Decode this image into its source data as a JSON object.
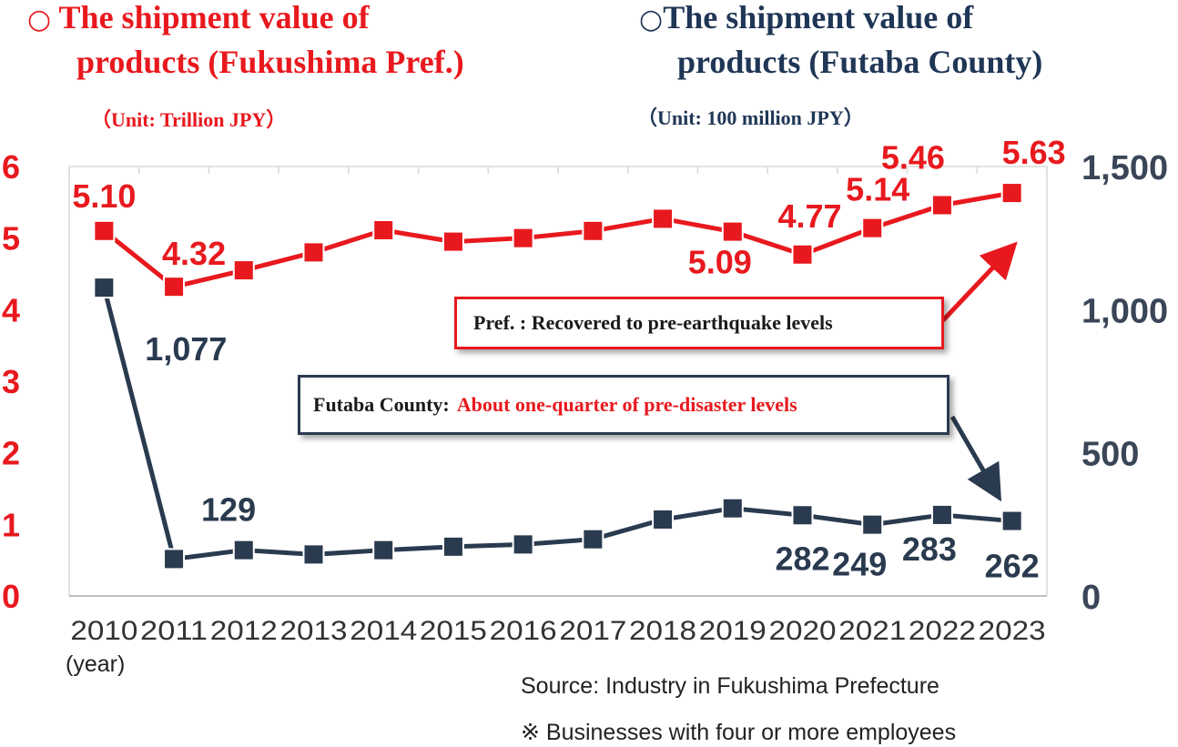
{
  "header": {
    "left_marker": "○",
    "left_title_line1": "The shipment value of",
    "left_title_line2": "products  (Fukushima Pref.)",
    "left_unit": "（Unit: Trillion JPY）",
    "right_marker": "○",
    "right_title_line1": "The shipment value of",
    "right_title_line2": "products (Futaba County)",
    "right_unit": "（Unit: 100 million JPY）"
  },
  "colors": {
    "pref": "#e8191e",
    "futaba": "#2a3a4f",
    "axis_right": "#3a4658",
    "grid": "#d9d9d9"
  },
  "callouts": {
    "pref": "Pref. : Recovered to pre-earthquake levels",
    "futaba_prefix": "Futaba County: ",
    "futaba_highlight": "About one-quarter of pre-disaster levels"
  },
  "footer": {
    "year_label": "(year)",
    "source": "Source: Industry in Fukushima Prefecture",
    "note": "※ Businesses with four or more employees"
  },
  "chart_data": {
    "type": "line",
    "x": [
      "2010",
      "2011",
      "2012",
      "2013",
      "2014",
      "2015",
      "2016",
      "2017",
      "2018",
      "2019",
      "2020",
      "2021",
      "2022",
      "2023"
    ],
    "y_left": {
      "ylim": [
        0,
        6
      ],
      "ticks": [
        "0",
        "1",
        "2",
        "3",
        "4",
        "5",
        "6"
      ]
    },
    "y_right": {
      "ylim": [
        0,
        1500
      ],
      "ticks": [
        "0",
        "500",
        "1,000",
        "1,500"
      ]
    },
    "series": [
      {
        "key": "pref",
        "axis": "left",
        "values": [
          5.1,
          4.32,
          4.55,
          4.8,
          5.11,
          4.95,
          5.0,
          5.1,
          5.27,
          5.09,
          4.77,
          5.14,
          5.46,
          5.63
        ],
        "labels": [
          "5.10",
          "4.32",
          "",
          "",
          "",
          "",
          "",
          "",
          "",
          "5.09",
          "4.77",
          "5.14",
          "5.46",
          "5.63"
        ]
      },
      {
        "key": "futaba",
        "axis": "right",
        "values": [
          1077,
          129,
          160,
          145,
          160,
          172,
          180,
          198,
          267,
          306,
          282,
          249,
          283,
          262
        ],
        "labels": [
          "1,077",
          "129",
          "",
          "",
          "",
          "",
          "",
          "",
          "",
          "",
          "282",
          "249",
          "283",
          "262"
        ]
      }
    ]
  }
}
